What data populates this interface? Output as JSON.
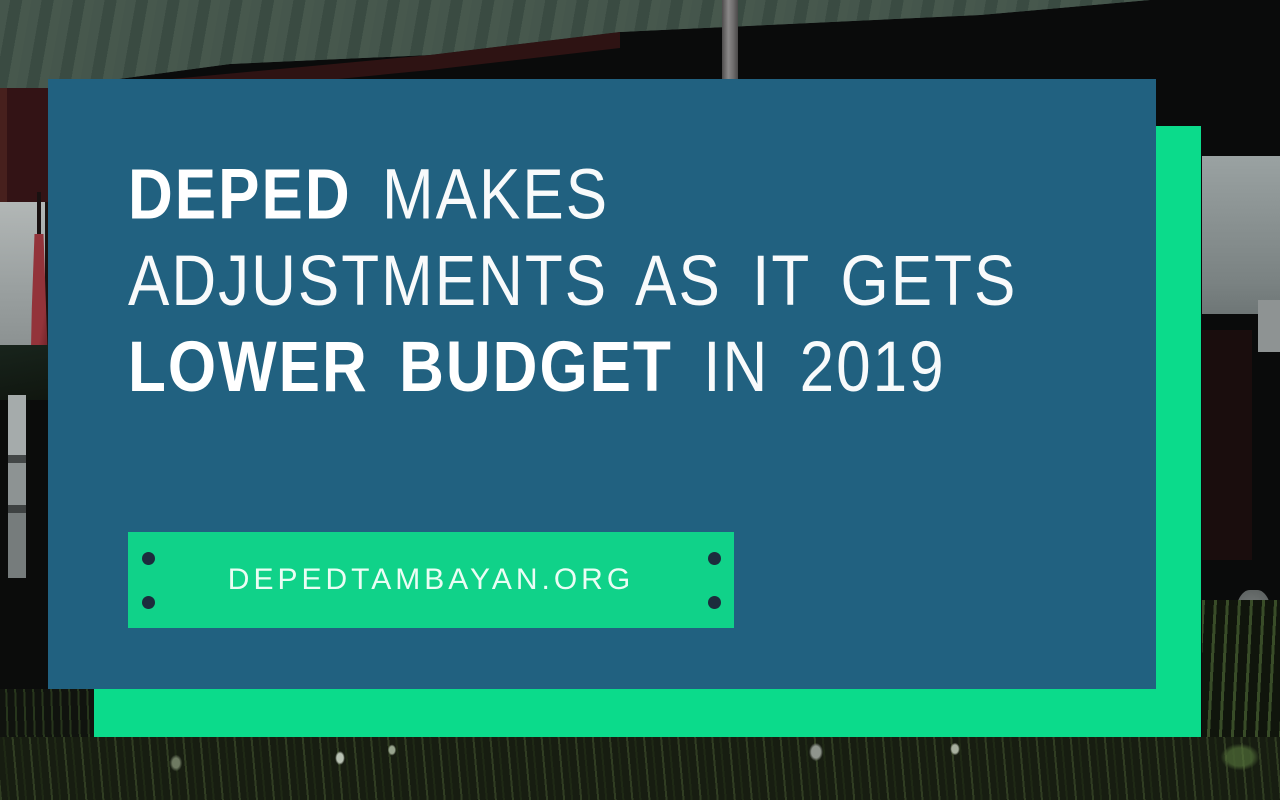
{
  "headline": {
    "line1_emphasis": "DEPED",
    "line1_rest": " MAKES",
    "line2": "ADJUSTMENTS AS IT GETS",
    "line3_emphasis": "LOWER BUDGET",
    "line3_rest": " IN 2019"
  },
  "badge": {
    "label": "DEPEDTAMBAYAN.ORG"
  },
  "colors": {
    "panel_teal": "#216180",
    "accent_green": "#0BDB8B",
    "badge_green": "#10D289",
    "badge_dot_navy": "#1C2C3D",
    "headline_text": "#FFFFFF",
    "badge_text": "#EAFDF4"
  }
}
